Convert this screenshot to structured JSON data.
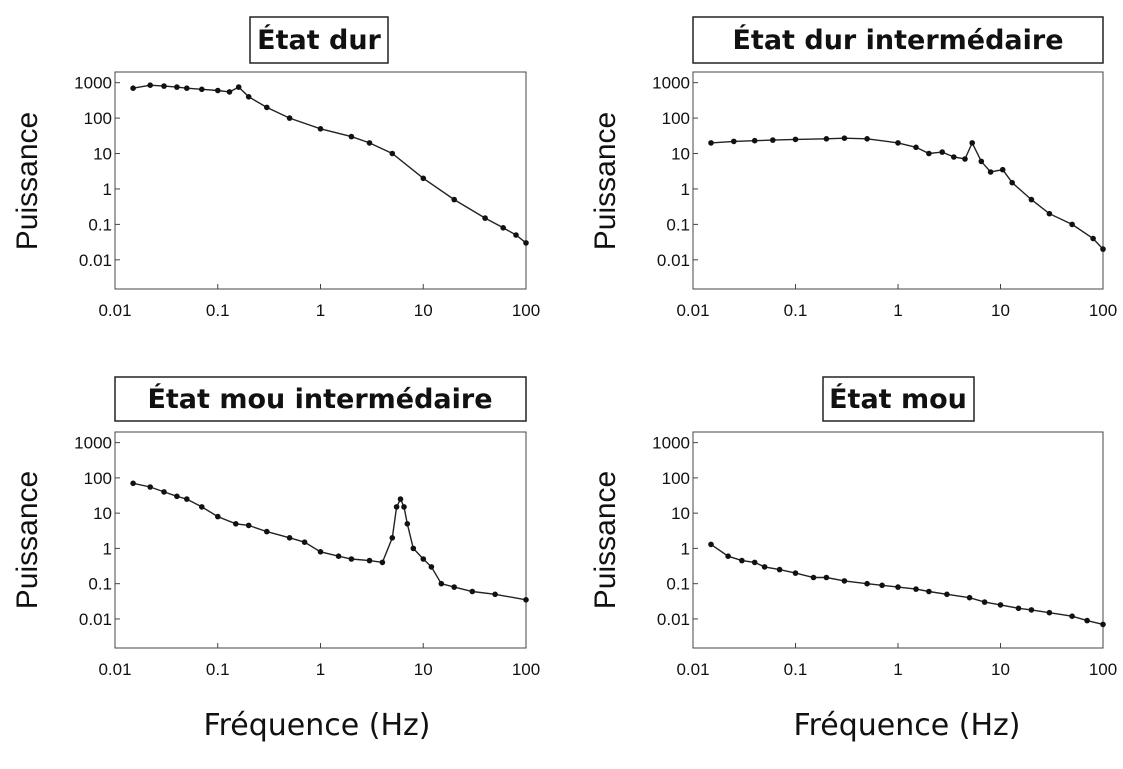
{
  "figure": {
    "xlabel": "Fréquence (Hz)"
  },
  "chart_data": [
    {
      "type": "scatter",
      "title": "État dur",
      "ylabel": "Puissance",
      "x_scale": "log",
      "y_scale": "log",
      "xlim": [
        0.01,
        100
      ],
      "ylim": [
        0.0015,
        2000
      ],
      "x_ticks": [
        "0.01",
        "0.1",
        "1",
        "10",
        "100"
      ],
      "y_ticks": [
        "1000",
        "100",
        "10",
        "1",
        "0.1",
        "0.01"
      ],
      "series": [
        {
          "x": [
            0.015,
            0.022,
            0.03,
            0.04,
            0.05,
            0.07,
            0.1,
            0.13,
            0.16,
            0.2,
            0.3,
            0.5,
            1,
            2,
            3,
            5,
            10,
            20,
            40,
            60,
            80,
            100
          ],
          "y": [
            700,
            850,
            800,
            750,
            700,
            650,
            600,
            550,
            750,
            400,
            200,
            100,
            50,
            30,
            20,
            10,
            2,
            0.5,
            0.15,
            0.08,
            0.05,
            0.03
          ]
        }
      ]
    },
    {
      "type": "scatter",
      "title": "État dur intermédaire",
      "ylabel": "Puissance",
      "x_scale": "log",
      "y_scale": "log",
      "xlim": [
        0.01,
        100
      ],
      "ylim": [
        0.0015,
        2000
      ],
      "x_ticks": [
        "0.01",
        "0.1",
        "1",
        "10",
        "100"
      ],
      "y_ticks": [
        "1000",
        "100",
        "10",
        "1",
        "0.1",
        "0.01"
      ],
      "series": [
        {
          "x": [
            0.015,
            0.025,
            0.04,
            0.06,
            0.1,
            0.2,
            0.3,
            0.5,
            1,
            1.5,
            2,
            2.7,
            3.5,
            4.5,
            5.3,
            6.5,
            8,
            10.5,
            13,
            20,
            30,
            50,
            80,
            100
          ],
          "y": [
            20,
            22,
            23,
            24,
            25,
            26,
            27,
            26,
            20,
            15,
            10,
            11,
            8,
            7,
            20,
            6,
            3,
            3.5,
            1.5,
            0.5,
            0.2,
            0.1,
            0.04,
            0.02
          ]
        }
      ]
    },
    {
      "type": "scatter",
      "title": "État mou intermédaire",
      "ylabel": "Puissance",
      "x_scale": "log",
      "y_scale": "log",
      "xlim": [
        0.01,
        100
      ],
      "ylim": [
        0.0015,
        2000
      ],
      "x_ticks": [
        "0.01",
        "0.1",
        "1",
        "10",
        "100"
      ],
      "y_ticks": [
        "1000",
        "100",
        "10",
        "1",
        "0.1",
        "0.01"
      ],
      "series": [
        {
          "x": [
            0.015,
            0.022,
            0.03,
            0.04,
            0.05,
            0.07,
            0.1,
            0.15,
            0.2,
            0.3,
            0.5,
            0.7,
            1,
            1.5,
            2,
            3,
            4,
            5,
            5.5,
            6,
            6.5,
            7,
            8,
            10,
            12,
            15,
            20,
            30,
            50,
            100
          ],
          "y": [
            70,
            55,
            40,
            30,
            25,
            15,
            8,
            5,
            4.5,
            3,
            2,
            1.5,
            0.8,
            0.6,
            0.5,
            0.45,
            0.4,
            2,
            15,
            25,
            15,
            5,
            1,
            0.5,
            0.3,
            0.1,
            0.08,
            0.06,
            0.05,
            0.035
          ]
        }
      ]
    },
    {
      "type": "scatter",
      "title": "État mou",
      "ylabel": "Puissance",
      "x_scale": "log",
      "y_scale": "log",
      "xlim": [
        0.01,
        100
      ],
      "ylim": [
        0.0015,
        2000
      ],
      "x_ticks": [
        "0.01",
        "0.1",
        "1",
        "10",
        "100"
      ],
      "y_ticks": [
        "1000",
        "100",
        "10",
        "1",
        "0.1",
        "0.01"
      ],
      "series": [
        {
          "x": [
            0.015,
            0.022,
            0.03,
            0.04,
            0.05,
            0.07,
            0.1,
            0.15,
            0.2,
            0.3,
            0.5,
            0.7,
            1,
            1.5,
            2,
            3,
            5,
            7,
            10,
            15,
            20,
            30,
            50,
            70,
            100
          ],
          "y": [
            1.3,
            0.6,
            0.45,
            0.4,
            0.3,
            0.25,
            0.2,
            0.15,
            0.15,
            0.12,
            0.1,
            0.09,
            0.08,
            0.07,
            0.06,
            0.05,
            0.04,
            0.03,
            0.025,
            0.02,
            0.018,
            0.015,
            0.012,
            0.009,
            0.007
          ]
        }
      ]
    }
  ]
}
